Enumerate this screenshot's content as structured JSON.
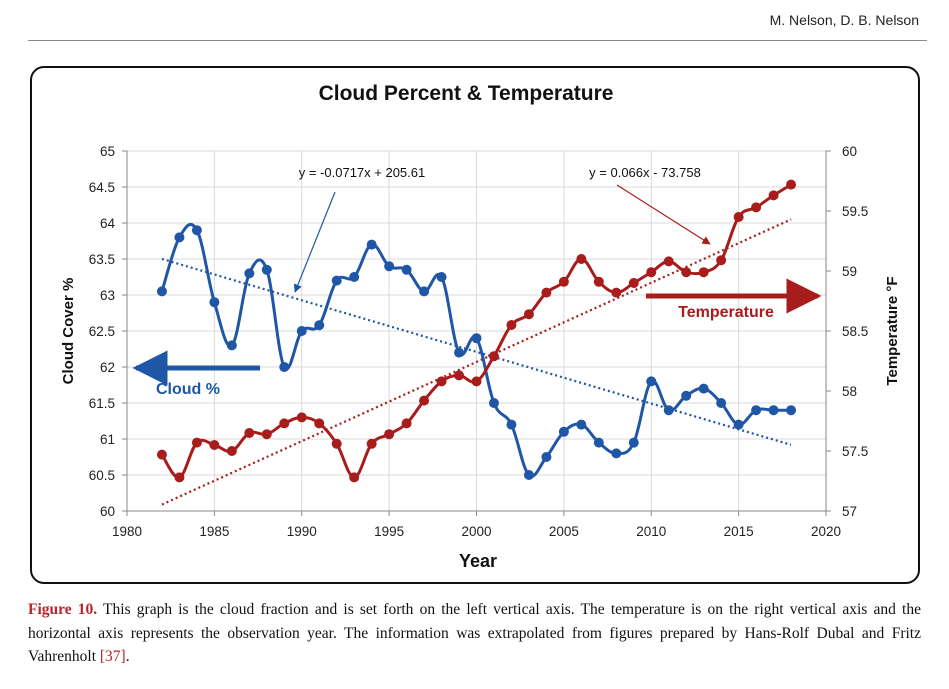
{
  "header": {
    "authors": "M. Nelson, D. B. Nelson"
  },
  "caption": {
    "label": "Figure 10.",
    "text": " This graph is the cloud fraction and is set forth on the left vertical axis. The temperature is on the right vertical axis and the horizontal axis represents the observation year. The information was extrapolated from figures prepared by Hans-Rolf Dubal and Fritz Vahrenholt ",
    "ref": "[37]",
    "end": "."
  },
  "colors": {
    "cloud": "#1f56a6",
    "temperature": "#a81c1c",
    "grid": "#d9d9d9"
  },
  "chart_data": {
    "type": "line",
    "title": "Cloud Percent & Temperature",
    "xlabel": "Year",
    "ylabel_left": "Cloud Cover %",
    "ylabel_right": "Temperature °F",
    "xlim": [
      1980,
      2020
    ],
    "x_ticks": [
      "1980",
      "1985",
      "1990",
      "1995",
      "2000",
      "2005",
      "2010",
      "2015",
      "2020"
    ],
    "ylim_left": [
      60,
      65
    ],
    "y_left_ticks": [
      "60",
      "60.5",
      "61",
      "61.5",
      "62",
      "62.5",
      "63",
      "63.5",
      "64",
      "64.5",
      "65"
    ],
    "ylim_right": [
      57,
      60
    ],
    "y_right_ticks": [
      "57",
      "57.5",
      "58",
      "58.5",
      "59",
      "59.5",
      "60"
    ],
    "grid": true,
    "series": [
      {
        "name": "Cloud %",
        "axis": "left",
        "x": [
          1982,
          1983,
          1984,
          1985,
          1986,
          1987,
          1988,
          1989,
          1990,
          1991,
          1992,
          1993,
          1994,
          1995,
          1996,
          1997,
          1998,
          1999,
          2000,
          2001,
          2002,
          2003,
          2004,
          2005,
          2006,
          2007,
          2008,
          2009,
          2010,
          2011,
          2012,
          2013,
          2014,
          2015,
          2016,
          2017,
          2018
        ],
        "y": [
          63.05,
          63.8,
          63.9,
          62.9,
          62.3,
          63.3,
          63.35,
          62.0,
          62.5,
          62.58,
          63.2,
          63.25,
          63.7,
          63.4,
          63.35,
          63.05,
          63.25,
          62.2,
          62.4,
          61.5,
          61.2,
          60.5,
          60.75,
          61.1,
          61.2,
          60.95,
          60.8,
          60.95,
          61.8,
          61.4,
          61.6,
          61.7,
          61.5,
          61.2,
          61.4,
          61.4,
          61.4
        ]
      },
      {
        "name": "Temperature",
        "axis": "right",
        "x": [
          1982,
          1983,
          1984,
          1985,
          1986,
          1987,
          1988,
          1989,
          1990,
          1991,
          1992,
          1993,
          1994,
          1995,
          1996,
          1997,
          1998,
          1999,
          2000,
          2001,
          2002,
          2003,
          2004,
          2005,
          2006,
          2007,
          2008,
          2009,
          2010,
          2011,
          2012,
          2013,
          2014,
          2015,
          2016,
          2017,
          2018
        ],
        "y": [
          57.47,
          57.28,
          57.57,
          57.55,
          57.5,
          57.65,
          57.64,
          57.73,
          57.78,
          57.73,
          57.56,
          57.28,
          57.56,
          57.64,
          57.73,
          57.92,
          58.08,
          58.13,
          58.08,
          58.29,
          58.55,
          58.64,
          58.82,
          58.91,
          59.1,
          58.91,
          58.82,
          58.9,
          58.99,
          59.08,
          58.99,
          58.99,
          59.09,
          59.45,
          59.53,
          59.63,
          59.72
        ]
      }
    ],
    "trendlines": [
      {
        "series": "Cloud %",
        "equation": "y = -0.0717x + 205.61",
        "slope": -0.0717,
        "intercept": 205.61,
        "x_range": [
          1982,
          2018
        ]
      },
      {
        "series": "Temperature",
        "equation": "y = 0.066x - 73.758",
        "slope": 0.066,
        "intercept": -73.758,
        "x_range": [
          1982,
          2018
        ]
      }
    ],
    "annotations": {
      "cloud_label": "Cloud %",
      "temperature_label": "Temperature"
    }
  }
}
